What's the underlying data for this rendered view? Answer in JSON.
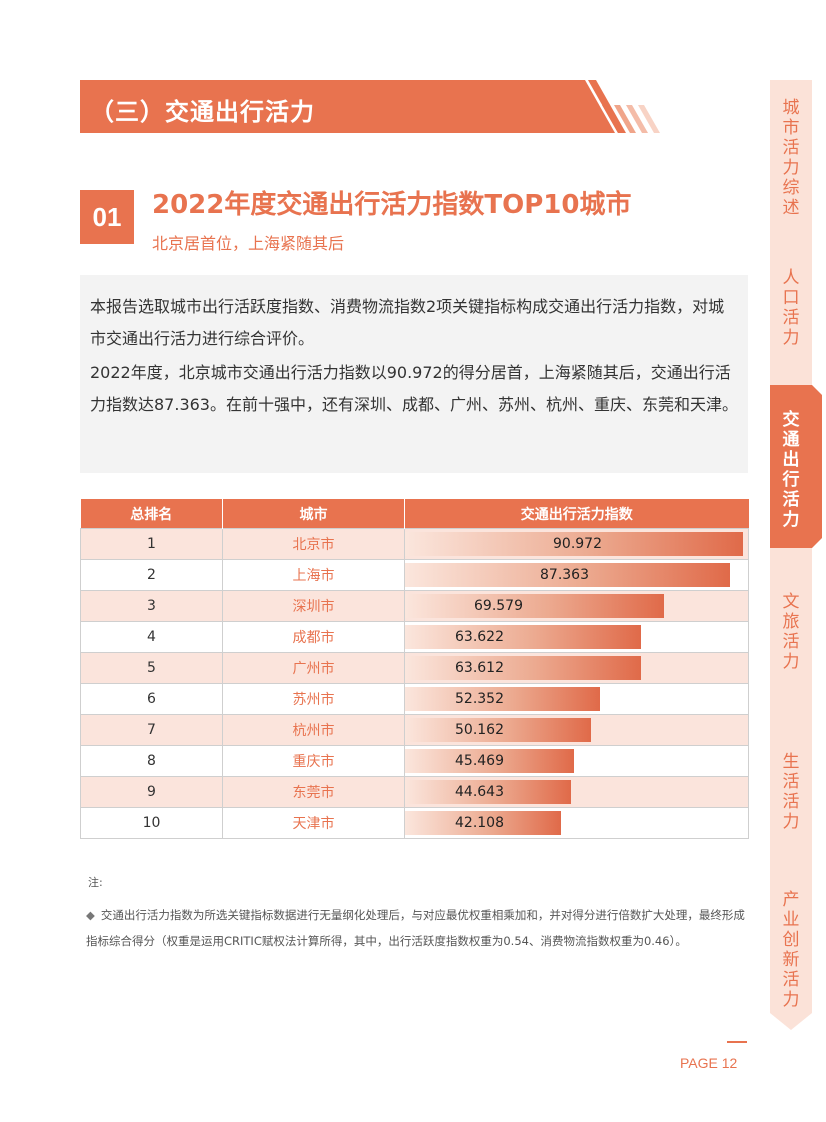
{
  "section": {
    "title": "（三）交通出行活力"
  },
  "subsection": {
    "number": "01",
    "title": "2022年度交通出行活力指数TOP10城市",
    "subtitle": "北京居首位，上海紧随其后"
  },
  "intro": {
    "paragraph1": "本报告选取城市出行活跃度指数、消费物流指数2项关键指标构成交通出行活力指数，对城市交通出行活力进行综合评价。",
    "paragraph2": "2022年度，北京城市交通出行活力指数以90.972的得分居首，上海紧随其后，交通出行活力指数达87.363。在前十强中，还有深圳、成都、广州、苏州、杭州、重庆、东莞和天津。"
  },
  "table": {
    "headers": [
      "总排名",
      "城市",
      "交通出行活力指数"
    ],
    "rows": [
      {
        "rank": "1",
        "city": "北京市",
        "value": "90.972"
      },
      {
        "rank": "2",
        "city": "上海市",
        "value": "87.363"
      },
      {
        "rank": "3",
        "city": "深圳市",
        "value": "69.579"
      },
      {
        "rank": "4",
        "city": "成都市",
        "value": "63.622"
      },
      {
        "rank": "5",
        "city": "广州市",
        "value": "63.612"
      },
      {
        "rank": "6",
        "city": "苏州市",
        "value": "52.352"
      },
      {
        "rank": "7",
        "city": "杭州市",
        "value": "50.162"
      },
      {
        "rank": "8",
        "city": "重庆市",
        "value": "45.469"
      },
      {
        "rank": "9",
        "city": "东莞市",
        "value": "44.643"
      },
      {
        "rank": "10",
        "city": "天津市",
        "value": "42.108"
      }
    ]
  },
  "note": {
    "label": "注:",
    "bullet": "◆",
    "text": "交通出行活力指数为所选关键指标数据进行无量纲化处理后，与对应最优权重相乘加和，并对得分进行倍数扩大处理，最终形成指标综合得分（权重是运用CRITIC赋权法计算所得，其中，出行活跃度指数权重为0.54、消费物流指数权重为0.46）。"
  },
  "page": {
    "label": "PAGE 12"
  },
  "side_tabs": [
    {
      "label": "城市活力综述",
      "active": false
    },
    {
      "label": "人口活力",
      "active": false
    },
    {
      "label": "交通出行活力",
      "active": true
    },
    {
      "label": "文旅活力",
      "active": false
    },
    {
      "label": "生活活力",
      "active": false
    },
    {
      "label": "产业创新活力",
      "active": false
    }
  ],
  "colors": {
    "accent": "#e8734f",
    "row_tint": "#fbe4dc",
    "side_bg": "#fbe2d8"
  }
}
